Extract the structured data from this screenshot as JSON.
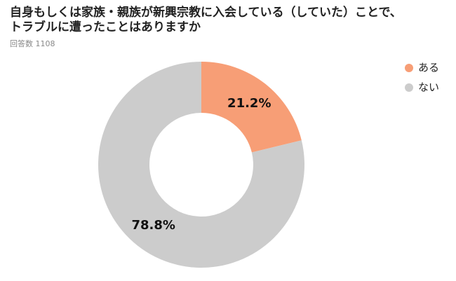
{
  "chart_data": {
    "type": "donut",
    "title": "自身もしくは家族・親族が新興宗教に入会している（していた）ことで、\nトラブルに遭ったことはありますか",
    "subtitle": "回答数 1108",
    "categories": [
      "ある",
      "ない"
    ],
    "values": [
      21.2,
      78.8
    ],
    "value_labels": [
      "21.2%",
      "78.8%"
    ],
    "colors": [
      "#f79e76",
      "#cccccc"
    ],
    "legend": "top-right"
  }
}
